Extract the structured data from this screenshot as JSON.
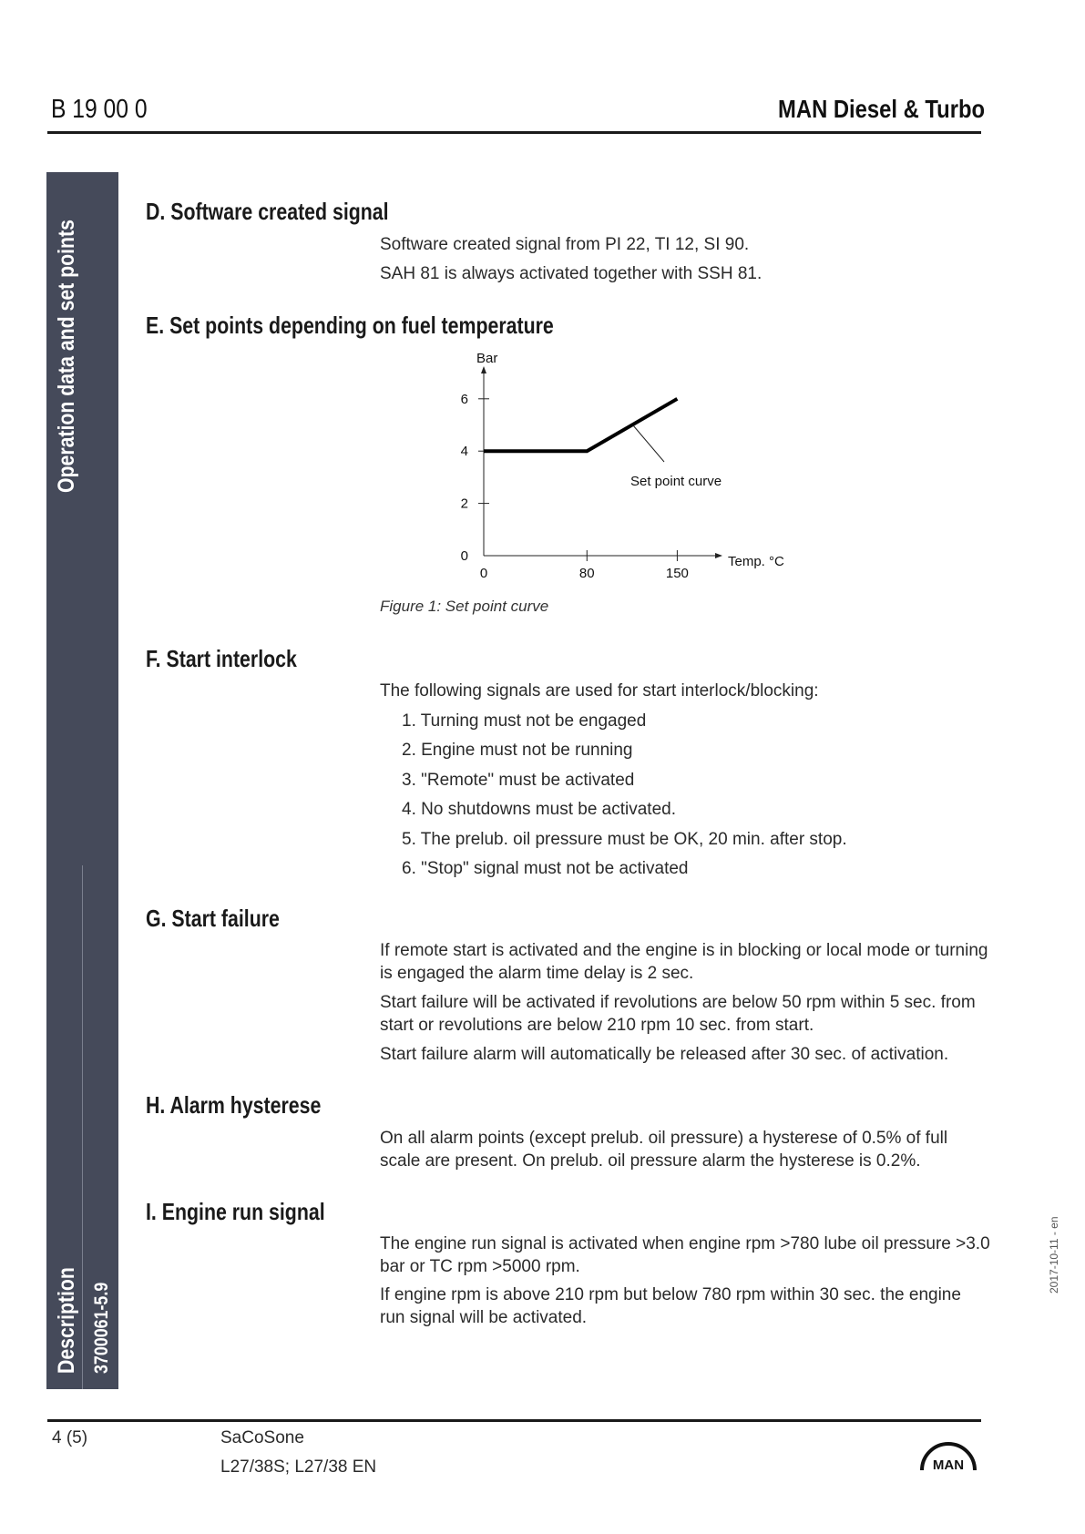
{
  "header": {
    "doc_code": "B 19 00 0",
    "company": "MAN Diesel & Turbo"
  },
  "sidebar": {
    "section_title": "Operation data and set points",
    "doc_type": "Description",
    "doc_number": "3700061-5.9"
  },
  "sections": {
    "d": {
      "heading": "D. Software created signal",
      "paragraphs": [
        "Software created signal from PI 22, TI 12, SI 90.",
        "SAH 81 is always activated together with SSH 81."
      ]
    },
    "e": {
      "heading": "E. Set points depending on fuel temperature",
      "figure_caption": "Figure 1: Set point curve"
    },
    "f": {
      "heading": "F. Start interlock",
      "intro": "The following signals are used for start interlock/blocking:",
      "items": [
        "1. Turning must not be engaged",
        "2. Engine must not be running",
        "3. \"Remote\" must be activated",
        "4. No shutdowns must be activated.",
        "5. The prelub. oil pressure must be OK, 20 min. after stop.",
        "6. \"Stop\" signal must not be activated"
      ]
    },
    "g": {
      "heading": "G. Start failure",
      "paragraphs": [
        "If remote start is activated and the engine is in blocking or local mode or turning is engaged the alarm time delay is 2 sec.",
        "Start failure will be activated if revolutions are below 50 rpm within 5 sec. from start or revolutions are below 210 rpm 10 sec. from start.",
        "Start failure alarm will automatically be released after 30 sec. of activation."
      ]
    },
    "h": {
      "heading": "H. Alarm hysterese",
      "paragraphs": [
        "On all alarm points (except prelub. oil pressure) a hysterese of 0.5% of full scale are present. On prelub. oil pressure alarm the hysterese is 0.2%."
      ]
    },
    "i": {
      "heading": "I. Engine run signal",
      "paragraphs": [
        "The engine run signal is activated when engine rpm >780 lube oil pressure >3.0 bar or TC rpm >5000 rpm.",
        "If engine rpm is above 210 rpm but below 780 rpm within 30 sec. the engine run signal will be activated."
      ]
    }
  },
  "chart_data": {
    "type": "line",
    "ylabel": "Bar",
    "xlabel": "Temp. °C",
    "xticks": [
      0,
      80,
      150
    ],
    "yticks": [
      0,
      2,
      4,
      6
    ],
    "series": [
      {
        "x": [
          0,
          80,
          150
        ],
        "y": [
          4,
          4,
          6
        ]
      }
    ],
    "annotation": "Set point curve",
    "grid": false
  },
  "footer": {
    "page": "4 (5)",
    "product": "SaCoSone",
    "engines": "L27/38S; L27/38 EN",
    "date": "2017-10-11 - en",
    "logo_text": "MAN"
  },
  "colors": {
    "sidebar": "#454a5a"
  }
}
